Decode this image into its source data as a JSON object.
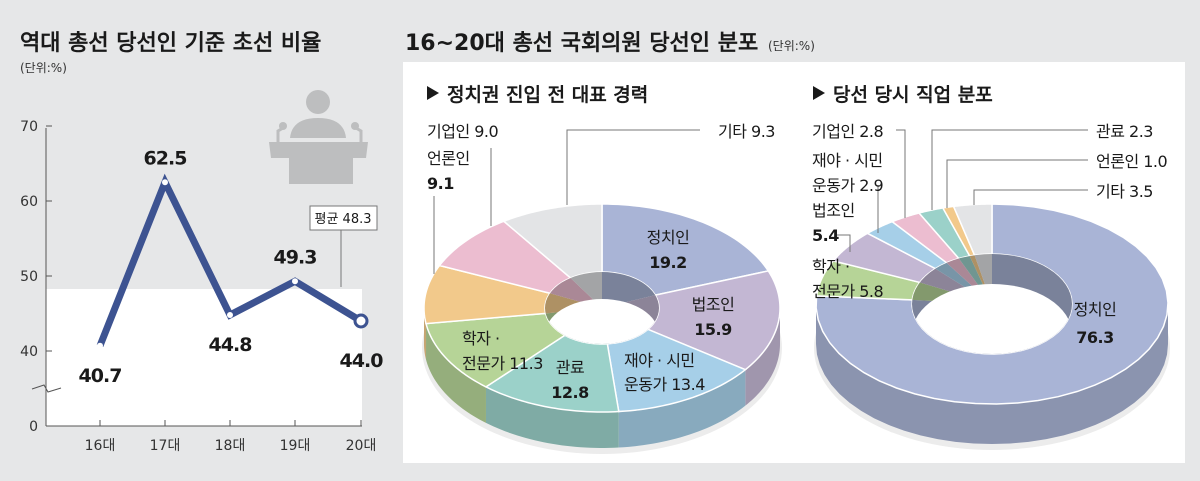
{
  "left": {
    "title": "역대 총선 당선인 기준 초선 비율",
    "unit": "(단위:%)"
  },
  "right": {
    "title": "16~20대 총선 국회의원 당선인 분포",
    "unit": "(단위:%)"
  },
  "colors": {
    "line": "#3d5391",
    "정치인": "#a9b4d6",
    "법조인": "#c3b7d3",
    "재야·시민운동가": "#a6cfe8",
    "관료": "#9bd1c9",
    "학자·전문가": "#b6d497",
    "언론인": "#f2c98b",
    "기업인": "#ecbdd0",
    "기타": "#e3e4e6"
  },
  "chart_data": [
    {
      "type": "line",
      "title": "역대 총선 당선인 기준 초선 비율",
      "unit": "%",
      "categories": [
        "16대",
        "17대",
        "18대",
        "19대",
        "20대"
      ],
      "values": [
        40.7,
        62.5,
        44.8,
        49.3,
        44.0
      ],
      "value_labels": [
        "40.7",
        "62.5",
        "44.8",
        "49.3",
        "44.0"
      ],
      "yticks": [
        "0",
        "40",
        "50",
        "60",
        "70"
      ],
      "ylim": [
        0,
        70
      ],
      "axis_break": true,
      "average": {
        "value": 48.3,
        "label": "평균 48.3"
      }
    },
    {
      "type": "pie",
      "subtitle": "정치권 진입 전 대표 경력",
      "slices": [
        {
          "name": "정치인",
          "value": 19.2,
          "label": [
            "정치인",
            "19.2"
          ]
        },
        {
          "name": "법조인",
          "value": 15.9,
          "label": [
            "법조인",
            "15.9"
          ]
        },
        {
          "name": "재야·시민운동가",
          "value": 13.4,
          "label": [
            "재야 · 시민",
            "운동가 13.4"
          ]
        },
        {
          "name": "관료",
          "value": 12.8,
          "label": [
            "관료",
            "12.8"
          ]
        },
        {
          "name": "학자·전문가",
          "value": 11.3,
          "label": [
            "학자 ·",
            "전문가 11.3"
          ]
        },
        {
          "name": "언론인",
          "value": 9.1,
          "label": [
            "언론인",
            "9.1"
          ]
        },
        {
          "name": "기업인",
          "value": 9.0,
          "label": [
            "기업인 9.0"
          ]
        },
        {
          "name": "기타",
          "value": 9.3,
          "label": [
            "기타 9.3"
          ]
        }
      ]
    },
    {
      "type": "pie",
      "subtitle": "당선 당시 직업 분포",
      "slices": [
        {
          "name": "정치인",
          "value": 76.3,
          "label": [
            "정치인",
            "76.3"
          ]
        },
        {
          "name": "학자·전문가",
          "value": 5.8,
          "label": [
            "학자 ·",
            "전문가 5.8"
          ]
        },
        {
          "name": "법조인",
          "value": 5.4,
          "label": [
            "법조인",
            "5.4"
          ]
        },
        {
          "name": "재야·시민운동가",
          "value": 2.9,
          "label": [
            "재야 · 시민",
            "운동가 2.9"
          ]
        },
        {
          "name": "기업인",
          "value": 2.8,
          "label": [
            "기업인 2.8"
          ]
        },
        {
          "name": "관료",
          "value": 2.3,
          "label": [
            "관료 2.3"
          ]
        },
        {
          "name": "언론인",
          "value": 1.0,
          "label": [
            "언론인 1.0"
          ]
        },
        {
          "name": "기타",
          "value": 3.5,
          "label": [
            "기타 3.5"
          ]
        }
      ]
    }
  ]
}
